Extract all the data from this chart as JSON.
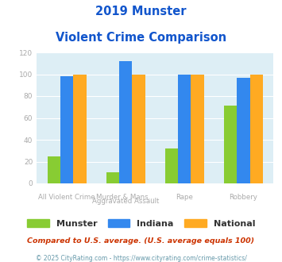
{
  "title_line1": "2019 Munster",
  "title_line2": "Violent Crime Comparison",
  "top_labels": [
    "",
    "Murder & Mans...",
    "",
    ""
  ],
  "bottom_labels": [
    "All Violent Crime",
    "Aggravated Assault",
    "Rape",
    "Robbery"
  ],
  "munster": [
    25,
    10,
    32,
    71
  ],
  "indiana": [
    98,
    112,
    100,
    97
  ],
  "national": [
    100,
    100,
    100,
    100
  ],
  "munster_color": "#88cc33",
  "indiana_color": "#3388ee",
  "national_color": "#ffaa22",
  "ylim": [
    0,
    120
  ],
  "yticks": [
    0,
    20,
    40,
    60,
    80,
    100,
    120
  ],
  "plot_bg": "#ddeef5",
  "footer1": "Compared to U.S. average. (U.S. average equals 100)",
  "footer2": "© 2025 CityRating.com - https://www.cityrating.com/crime-statistics/",
  "title_color": "#1155cc",
  "footer1_color": "#cc3300",
  "footer2_color": "#6699aa",
  "ytick_color": "#aaaaaa",
  "xtick_color": "#aaaaaa",
  "grid_color": "#ffffff",
  "bar_width": 0.22
}
